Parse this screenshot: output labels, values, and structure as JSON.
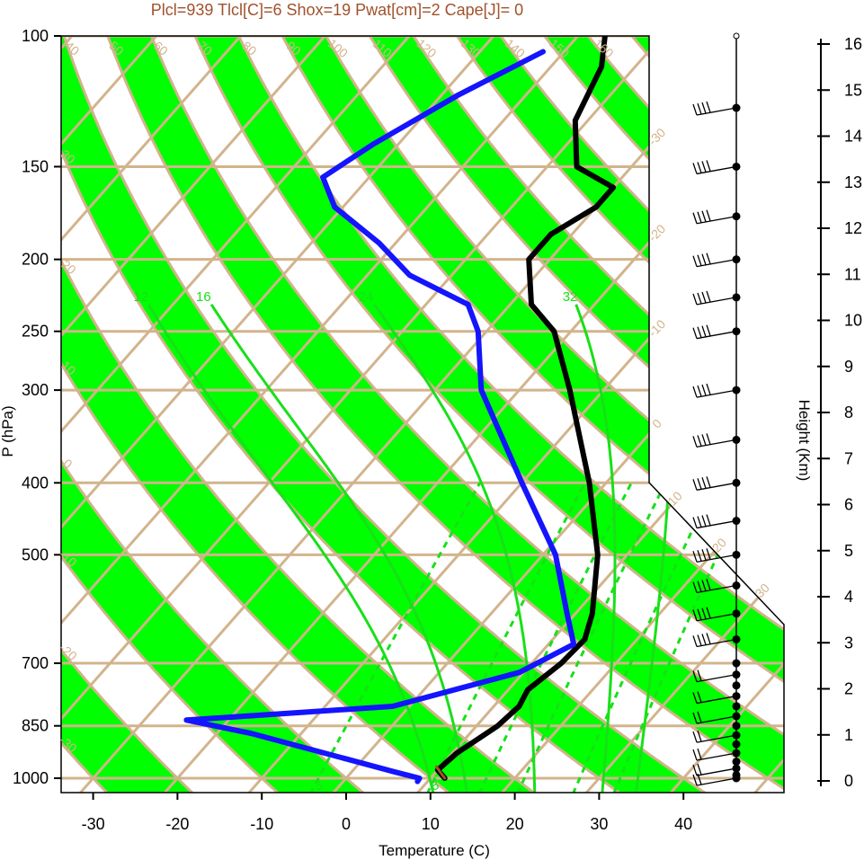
{
  "chart_data": {
    "type": "skewt-logp",
    "title": "Plcl=939 Tlcl[C]=6 Shox=19 Pwat[cm]=2 Cape[J]= 0",
    "xlabel": "Temperature (C)",
    "ylabel": "P (hPa)",
    "height_label": "Height (Km)",
    "x_ticks": [
      -30,
      -20,
      -10,
      0,
      10,
      20,
      30,
      40
    ],
    "p_ticks": [
      100,
      150,
      200,
      250,
      300,
      400,
      500,
      700,
      850,
      1000
    ],
    "height_ticks": [
      0,
      1,
      2,
      3,
      4,
      5,
      6,
      7,
      8,
      9,
      10,
      11,
      12,
      13,
      14,
      15,
      16
    ],
    "dry_adiabat_labels": [
      "-30",
      "-20",
      "-10",
      "0",
      "10",
      "20",
      "30",
      "40",
      "50",
      "60",
      "70",
      "80",
      "90",
      "100",
      "110",
      "120",
      "130",
      "140",
      "150",
      "160"
    ],
    "temperature_labels": [
      "-30",
      "-20",
      "-10",
      "0",
      "10",
      "20",
      "30"
    ],
    "mixing_ratio_labels": [
      "3",
      "8",
      "12",
      "16",
      "24",
      "32"
    ],
    "colors": {
      "temperature": "#000000",
      "dewpoint": "#1414ff",
      "parcel": "#a0522d",
      "band_fill": "#00ff00",
      "isopleth": "#d2b48c",
      "mixing_ratio": "#18e018",
      "header": "#a0522d"
    },
    "series": [
      {
        "name": "temperature",
        "points": [
          {
            "p": 1000,
            "t": 11.7
          },
          {
            "p": 975,
            "t": 10.0
          },
          {
            "p": 925,
            "t": 10.5
          },
          {
            "p": 850,
            "t": 12.5
          },
          {
            "p": 800,
            "t": 13.0
          },
          {
            "p": 760,
            "t": 12.3
          },
          {
            "p": 700,
            "t": 13.5
          },
          {
            "p": 650,
            "t": 13.8
          },
          {
            "p": 600,
            "t": 12.0
          },
          {
            "p": 500,
            "t": 6.5
          },
          {
            "p": 400,
            "t": -2.0
          },
          {
            "p": 300,
            "t": -14.0
          },
          {
            "p": 250,
            "t": -22.0
          },
          {
            "p": 230,
            "t": -27.5
          },
          {
            "p": 200,
            "t": -32.5
          },
          {
            "p": 185,
            "t": -32.5
          },
          {
            "p": 170,
            "t": -30.0
          },
          {
            "p": 160,
            "t": -30.0
          },
          {
            "p": 150,
            "t": -36.5
          },
          {
            "p": 130,
            "t": -41.5
          },
          {
            "p": 110,
            "t": -44.0
          },
          {
            "p": 100,
            "t": -46.8
          }
        ]
      },
      {
        "name": "dewpoint",
        "points": [
          {
            "p": 1010,
            "t": 8.8
          },
          {
            "p": 1000,
            "t": 8.7
          },
          {
            "p": 980,
            "t": 5.0
          },
          {
            "p": 870,
            "t": -16.0
          },
          {
            "p": 835,
            "t": -25.0
          },
          {
            "p": 800,
            "t": -2.0
          },
          {
            "p": 720,
            "t": 9.5
          },
          {
            "p": 660,
            "t": 13.0
          },
          {
            "p": 600,
            "t": 9.0
          },
          {
            "p": 500,
            "t": 1.5
          },
          {
            "p": 400,
            "t": -10.0
          },
          {
            "p": 300,
            "t": -24.5
          },
          {
            "p": 250,
            "t": -31.0
          },
          {
            "p": 230,
            "t": -35.0
          },
          {
            "p": 210,
            "t": -45.0
          },
          {
            "p": 190,
            "t": -52.0
          },
          {
            "p": 170,
            "t": -61.0
          },
          {
            "p": 155,
            "t": -65.5
          },
          {
            "p": 140,
            "t": -63.0
          },
          {
            "p": 120,
            "t": -58.0
          },
          {
            "p": 105,
            "t": -52.5
          }
        ]
      },
      {
        "name": "parcel",
        "points": [
          {
            "p": 1000,
            "t": 11.7
          },
          {
            "p": 965,
            "t": 9.5
          }
        ]
      }
    ],
    "wind_levels_hpa": [
      1000,
      990,
      970,
      950,
      925,
      900,
      875,
      850,
      825,
      800,
      775,
      750,
      725,
      700,
      650,
      600,
      550,
      500,
      450,
      400,
      350,
      300,
      250,
      225,
      200,
      175,
      150,
      125
    ]
  }
}
